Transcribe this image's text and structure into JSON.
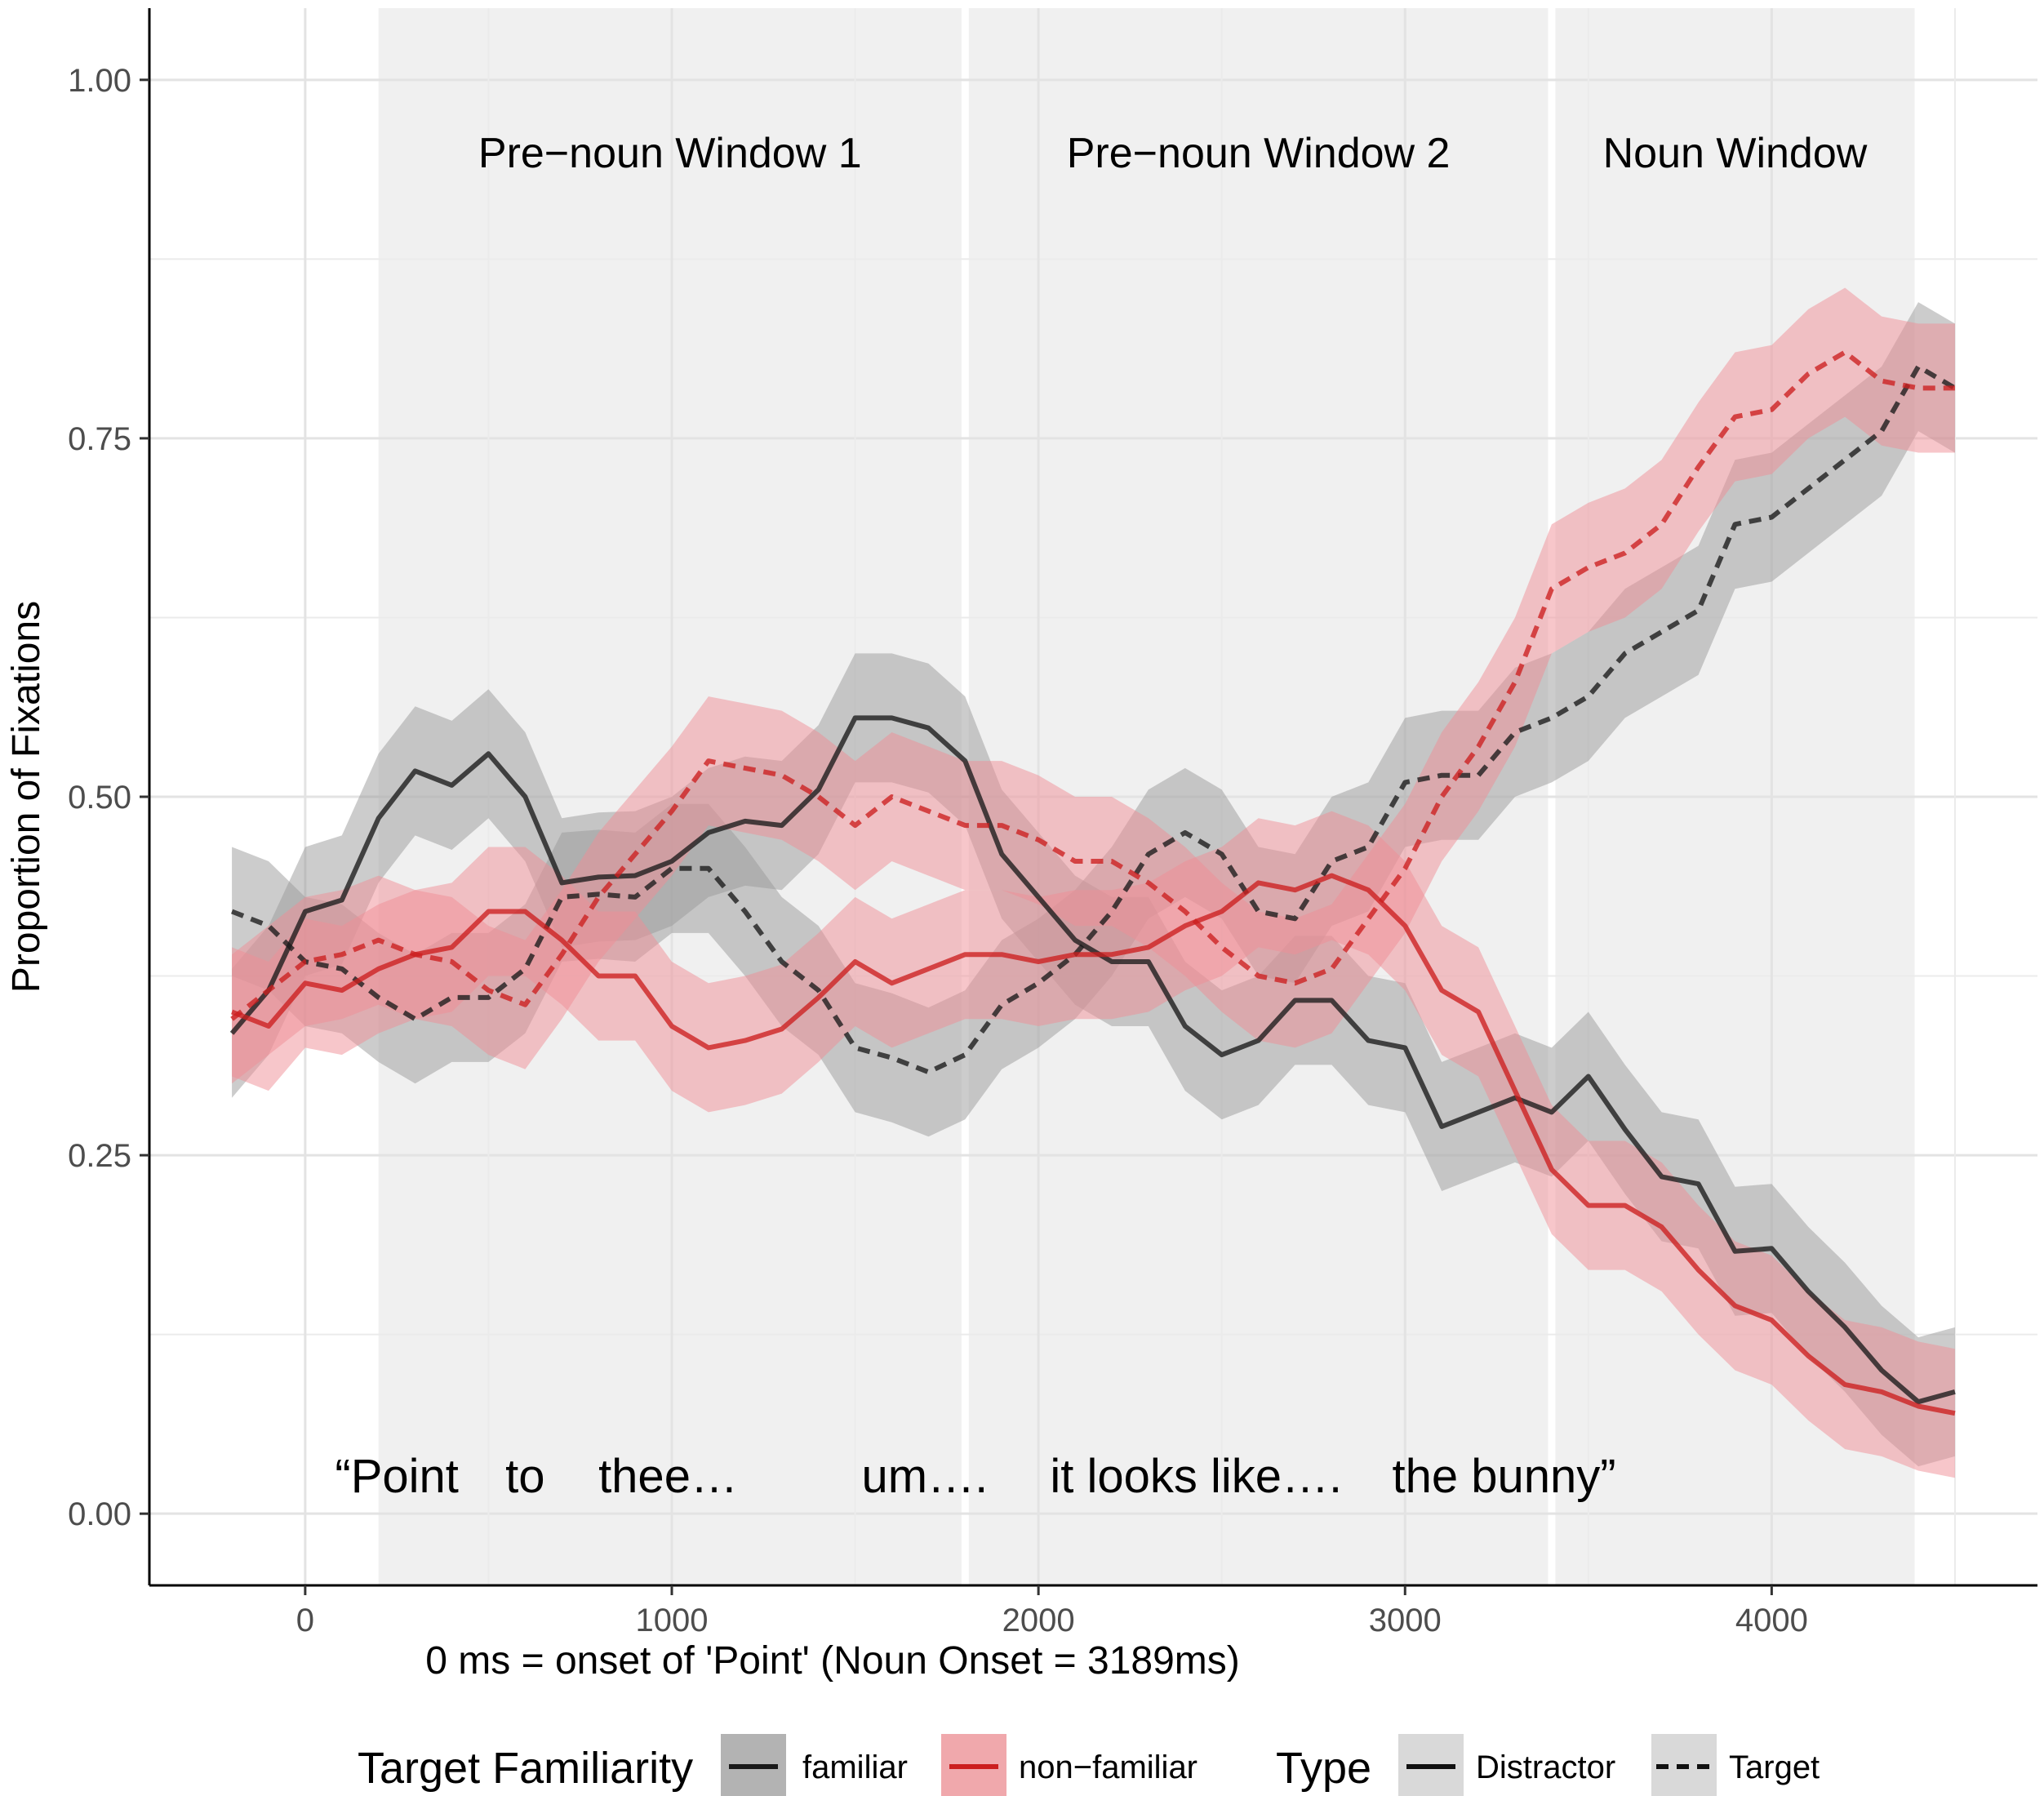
{
  "chart_data": {
    "type": "line",
    "xlabel": "0 ms = onset of 'Point' (Noun Onset = 3189ms)",
    "ylabel": "Proportion of Fixations",
    "xlim": [
      -425,
      4725
    ],
    "ylim": [
      -0.05,
      1.05
    ],
    "x_ticks": [
      0,
      1000,
      2000,
      3000,
      4000
    ],
    "x_tick_labels": [
      "0",
      "1000",
      "2000",
      "3000",
      "4000"
    ],
    "y_ticks": [
      0,
      0.25,
      0.5,
      0.75,
      1.0
    ],
    "y_tick_labels": [
      "0.00",
      "0.25",
      "0.50",
      "0.75",
      "1.00"
    ],
    "grid": true,
    "windows": [
      {
        "label": "Pre−noun Window 1",
        "start": 200,
        "end": 1790
      },
      {
        "label": "Pre−noun Window 2",
        "start": 1810,
        "end": 3390
      },
      {
        "label": "Noun Window",
        "start": 3410,
        "end": 4390
      }
    ],
    "utterance": [
      {
        "text": "“Point",
        "x": 250
      },
      {
        "text": "to",
        "x": 600
      },
      {
        "text": "thee…",
        "x": 990
      },
      {
        "text": "um….",
        "x": 1690
      },
      {
        "text": "it looks like….",
        "x": 2430
      },
      {
        "text": "the bunny”",
        "x": 3270
      }
    ],
    "legend": {
      "familiarity_title": "Target Familiarity",
      "familiarity_items": [
        {
          "label": "familiar",
          "color": "#1a1a1a",
          "fill": "#b3b3b3"
        },
        {
          "label": "non−familiar",
          "color": "#cc1f1f",
          "fill": "#f0a8ac"
        }
      ],
      "type_title": "Type",
      "type_items": [
        {
          "label": "Distractor",
          "dash": "solid"
        },
        {
          "label": "Target",
          "dash": "dashed"
        }
      ]
    },
    "x": [
      -200,
      -100,
      0,
      100,
      200,
      300,
      400,
      500,
      600,
      700,
      800,
      900,
      1000,
      1100,
      1200,
      1300,
      1400,
      1500,
      1600,
      1700,
      1800,
      1900,
      2000,
      2100,
      2200,
      2300,
      2400,
      2500,
      2600,
      2700,
      2800,
      2900,
      3000,
      3100,
      3200,
      3300,
      3400,
      3500,
      3600,
      3700,
      3800,
      3900,
      4000,
      4100,
      4200,
      4300,
      4400,
      4500
    ],
    "series": [
      {
        "name": "familiar Distractor",
        "familiarity": "familiar",
        "type": "Distractor",
        "color": "#1a1a1a",
        "fill": "#9a9a9a",
        "dash": "solid",
        "values": [
          0.335,
          0.365,
          0.42,
          0.428,
          0.485,
          0.518,
          0.508,
          0.53,
          0.5,
          0.44,
          0.444,
          0.445,
          0.455,
          0.475,
          0.483,
          0.48,
          0.505,
          0.555,
          0.555,
          0.548,
          0.525,
          0.46,
          0.43,
          0.4,
          0.385,
          0.385,
          0.34,
          0.32,
          0.33,
          0.358,
          0.358,
          0.33,
          0.325,
          0.27,
          0.28,
          0.29,
          0.28,
          0.305,
          0.268,
          0.235,
          0.23,
          0.183,
          0.185,
          0.155,
          0.13,
          0.1,
          0.078,
          0.085
        ],
        "ci": 0.045
      },
      {
        "name": "familiar Target",
        "familiarity": "familiar",
        "type": "Target",
        "color": "#1a1a1a",
        "fill": "#9a9a9a",
        "dash": "dashed",
        "values": [
          0.42,
          0.41,
          0.385,
          0.38,
          0.36,
          0.345,
          0.36,
          0.36,
          0.38,
          0.43,
          0.432,
          0.43,
          0.45,
          0.45,
          0.42,
          0.385,
          0.365,
          0.325,
          0.318,
          0.308,
          0.32,
          0.355,
          0.37,
          0.39,
          0.42,
          0.46,
          0.475,
          0.46,
          0.42,
          0.415,
          0.455,
          0.465,
          0.51,
          0.515,
          0.515,
          0.545,
          0.555,
          0.57,
          0.6,
          0.615,
          0.63,
          0.69,
          0.695,
          0.715,
          0.735,
          0.755,
          0.8,
          0.785
        ],
        "ci": 0.045
      },
      {
        "name": "non-familiar Distractor",
        "familiarity": "non-familiar",
        "type": "Distractor",
        "color": "#cc1f1f",
        "fill": "#ef8e95",
        "dash": "solid",
        "values": [
          0.35,
          0.34,
          0.37,
          0.365,
          0.38,
          0.39,
          0.395,
          0.42,
          0.42,
          0.4,
          0.375,
          0.375,
          0.34,
          0.325,
          0.33,
          0.338,
          0.36,
          0.385,
          0.37,
          0.38,
          0.39,
          0.39,
          0.385,
          0.39,
          0.39,
          0.395,
          0.41,
          0.42,
          0.44,
          0.435,
          0.445,
          0.435,
          0.41,
          0.365,
          0.35,
          0.295,
          0.24,
          0.215,
          0.215,
          0.2,
          0.17,
          0.145,
          0.135,
          0.11,
          0.09,
          0.085,
          0.075,
          0.07
        ],
        "ci": 0.045
      },
      {
        "name": "non-familiar Target",
        "familiarity": "non-familiar",
        "type": "Target",
        "color": "#cc1f1f",
        "fill": "#ef8e95",
        "dash": "dashed",
        "values": [
          0.345,
          0.365,
          0.385,
          0.39,
          0.4,
          0.39,
          0.385,
          0.365,
          0.355,
          0.39,
          0.43,
          0.46,
          0.49,
          0.525,
          0.52,
          0.515,
          0.5,
          0.48,
          0.5,
          0.49,
          0.48,
          0.48,
          0.47,
          0.455,
          0.455,
          0.44,
          0.42,
          0.395,
          0.375,
          0.37,
          0.38,
          0.415,
          0.45,
          0.5,
          0.535,
          0.58,
          0.645,
          0.66,
          0.67,
          0.69,
          0.73,
          0.765,
          0.77,
          0.795,
          0.81,
          0.79,
          0.785,
          0.785
        ],
        "ci": 0.045
      }
    ]
  }
}
